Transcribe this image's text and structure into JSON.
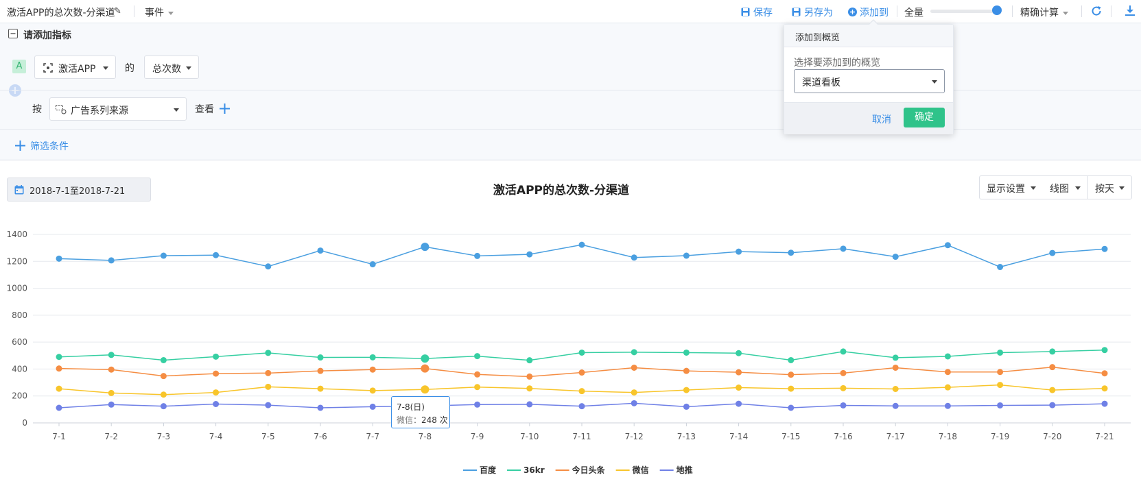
{
  "topbar": {
    "title": "激活APP的总次数-分渠道",
    "events_label": "事件",
    "save_label": "保存",
    "save_as_label": "另存为",
    "add_to_label": "添加到",
    "sample_label": "全量",
    "sample_value": 1.0,
    "calc_label": "精确计算"
  },
  "panel": {
    "add_metric_label": "请添加指标",
    "metric_tag": "A",
    "event_select": "激活APP",
    "of_label": "的",
    "measure_select": "总次数",
    "by_label": "按",
    "group_select": "广告系列来源",
    "view_label": "查看",
    "filter_label": "筛选条件"
  },
  "popover": {
    "title": "添加到概览",
    "select_label": "选择要添加到的概览",
    "select_value": "渠道看板",
    "cancel_label": "取消",
    "confirm_label": "确定"
  },
  "toolbar": {
    "date_range": "2018-7-1至2018-7-21",
    "display_settings": "显示设置",
    "chart_type": "线图",
    "granularity": "按天"
  },
  "colors": {
    "accent": "#3a8ee6",
    "confirm": "#2fc38a"
  },
  "tooltip": {
    "title": "7-8(日)",
    "series": "微信：",
    "value": "248",
    "unit": "次"
  },
  "chart_data": {
    "type": "line",
    "title": "激活APP的总次数-分渠道",
    "categories": [
      "7-1",
      "7-2",
      "7-3",
      "7-4",
      "7-5",
      "7-6",
      "7-7",
      "7-8",
      "7-9",
      "7-10",
      "7-11",
      "7-12",
      "7-13",
      "7-14",
      "7-15",
      "7-16",
      "7-17",
      "7-18",
      "7-19",
      "7-20",
      "7-21"
    ],
    "yticks": [
      "0",
      "200",
      "400",
      "600",
      "800",
      "1000",
      "1200",
      "1400"
    ],
    "ylim": [
      0,
      1400
    ],
    "grid": true,
    "legend_position": "bottom",
    "highlight_index": 7,
    "series": [
      {
        "name": "百度",
        "color": "#4a9fe0",
        "values": [
          1220,
          1207,
          1242,
          1246,
          1162,
          1280,
          1178,
          1308,
          1240,
          1252,
          1323,
          1228,
          1242,
          1272,
          1264,
          1294,
          1234,
          1320,
          1158,
          1262,
          1292
        ]
      },
      {
        "name": "36kr",
        "color": "#36cfa2",
        "values": [
          490,
          505,
          466,
          492,
          520,
          486,
          487,
          478,
          496,
          465,
          522,
          525,
          522,
          518,
          466,
          530,
          484,
          494,
          522,
          530,
          541
        ]
      },
      {
        "name": "今日头条",
        "color": "#f58d43",
        "values": [
          404,
          396,
          348,
          366,
          370,
          386,
          396,
          404,
          360,
          344,
          374,
          410,
          386,
          376,
          358,
          370,
          410,
          378,
          378,
          414,
          368
        ]
      },
      {
        "name": "微信",
        "color": "#f8c52b",
        "values": [
          254,
          222,
          210,
          226,
          268,
          254,
          240,
          248,
          266,
          256,
          236,
          226,
          244,
          262,
          254,
          258,
          252,
          264,
          282,
          244,
          256
        ]
      },
      {
        "name": "地推",
        "color": "#6f80e6",
        "values": [
          112,
          136,
          124,
          140,
          132,
          112,
          120,
          126,
          136,
          138,
          124,
          146,
          120,
          142,
          112,
          130,
          126,
          126,
          130,
          132,
          142
        ]
      }
    ]
  }
}
